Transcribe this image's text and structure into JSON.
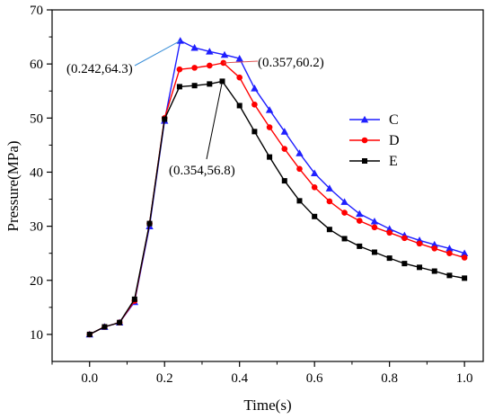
{
  "chart_data": {
    "type": "line",
    "title": "",
    "xlabel": "Time(s)",
    "ylabel": "Pressure(MPa)",
    "xlim": [
      -0.1,
      1.05
    ],
    "ylim": [
      5,
      70
    ],
    "xticks": [
      0.0,
      0.2,
      0.4,
      0.6,
      0.8,
      1.0
    ],
    "xtick_labels": [
      "0.0",
      "0.2",
      "0.4",
      "0.6",
      "0.8",
      "1.0"
    ],
    "yticks": [
      10,
      20,
      30,
      40,
      50,
      60,
      70
    ],
    "ytick_labels": [
      "10",
      "20",
      "30",
      "40",
      "50",
      "60",
      "70"
    ],
    "grid": false,
    "legend_position": "right-middle",
    "series": [
      {
        "name": "C",
        "color": "#1f1fff",
        "marker": "triangle",
        "x": [
          0.0,
          0.04,
          0.08,
          0.12,
          0.16,
          0.2,
          0.242,
          0.28,
          0.32,
          0.36,
          0.4,
          0.44,
          0.48,
          0.52,
          0.56,
          0.6,
          0.64,
          0.68,
          0.72,
          0.76,
          0.8,
          0.84,
          0.88,
          0.92,
          0.96,
          1.0
        ],
        "y": [
          10.0,
          11.4,
          12.2,
          16.0,
          30.0,
          49.5,
          64.3,
          63.0,
          62.3,
          61.7,
          61.0,
          55.5,
          51.5,
          47.5,
          43.5,
          39.8,
          37.0,
          34.5,
          32.3,
          30.9,
          29.5,
          28.3,
          27.4,
          26.6,
          25.9,
          25.0
        ]
      },
      {
        "name": "D",
        "color": "#ff0000",
        "marker": "circle",
        "x": [
          0.0,
          0.04,
          0.08,
          0.12,
          0.16,
          0.2,
          0.24,
          0.28,
          0.32,
          0.357,
          0.4,
          0.44,
          0.48,
          0.52,
          0.56,
          0.6,
          0.64,
          0.68,
          0.72,
          0.76,
          0.8,
          0.84,
          0.88,
          0.92,
          0.96,
          1.0
        ],
        "y": [
          10.0,
          11.4,
          12.2,
          16.2,
          30.5,
          50.0,
          59.0,
          59.3,
          59.7,
          60.2,
          57.5,
          52.5,
          48.3,
          44.3,
          40.6,
          37.2,
          34.6,
          32.5,
          31.0,
          29.8,
          28.8,
          27.8,
          26.8,
          25.9,
          25.0,
          24.2
        ]
      },
      {
        "name": "E",
        "color": "#000000",
        "marker": "square",
        "x": [
          0.0,
          0.04,
          0.08,
          0.12,
          0.16,
          0.2,
          0.24,
          0.28,
          0.32,
          0.354,
          0.4,
          0.44,
          0.48,
          0.52,
          0.56,
          0.6,
          0.64,
          0.68,
          0.72,
          0.76,
          0.8,
          0.84,
          0.88,
          0.92,
          0.96,
          1.0
        ],
        "y": [
          10.0,
          11.4,
          12.2,
          16.5,
          30.5,
          49.8,
          55.8,
          56.0,
          56.3,
          56.8,
          52.3,
          47.5,
          42.8,
          38.4,
          34.7,
          31.8,
          29.4,
          27.7,
          26.3,
          25.2,
          24.1,
          23.1,
          22.4,
          21.7,
          20.9,
          20.4
        ]
      }
    ],
    "annotations": [
      {
        "text": "(0.242,64.3)",
        "x": 0.242,
        "y": 64.3,
        "series": "C"
      },
      {
        "text": "(0.357,60.2)",
        "x": 0.357,
        "y": 60.2,
        "series": "D"
      },
      {
        "text": "(0.354,56.8)",
        "x": 0.354,
        "y": 56.8,
        "series": "E"
      }
    ]
  }
}
